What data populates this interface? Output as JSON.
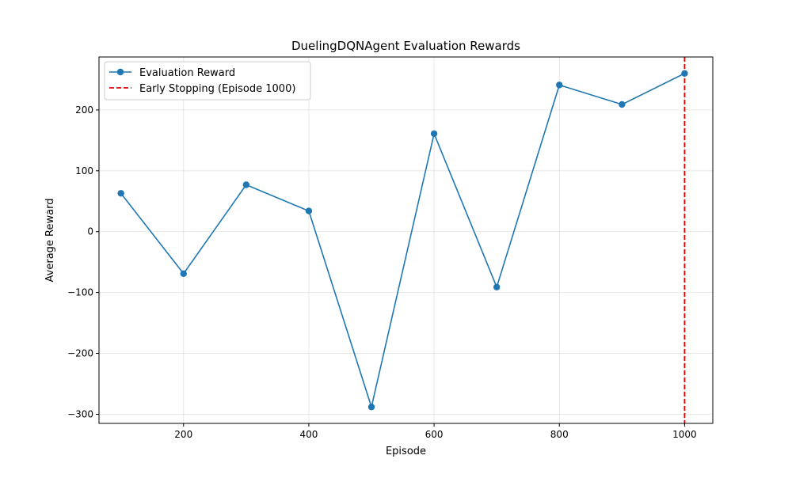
{
  "chart_data": {
    "type": "line",
    "title": "DuelingDQNAgent Evaluation Rewards",
    "xlabel": "Episode",
    "ylabel": "Average Reward",
    "xlim": [
      65,
      1045
    ],
    "ylim": [
      -315,
      287
    ],
    "xticks": [
      200,
      400,
      600,
      800,
      1000
    ],
    "yticks": [
      -300,
      -200,
      -100,
      0,
      100,
      200
    ],
    "grid": true,
    "legend_position": "upper-left",
    "series": [
      {
        "name": "Evaluation Reward",
        "color": "#1f77b4",
        "marker": "circle",
        "x": [
          100,
          200,
          300,
          400,
          500,
          600,
          700,
          800,
          900,
          1000
        ],
        "y": [
          63,
          -69,
          77,
          34,
          -288,
          161,
          -91,
          241,
          209,
          260
        ]
      }
    ],
    "vlines": [
      {
        "name": "Early Stopping (Episode 1000)",
        "x": 1000,
        "color": "#e00000",
        "style": "dashed"
      }
    ]
  }
}
